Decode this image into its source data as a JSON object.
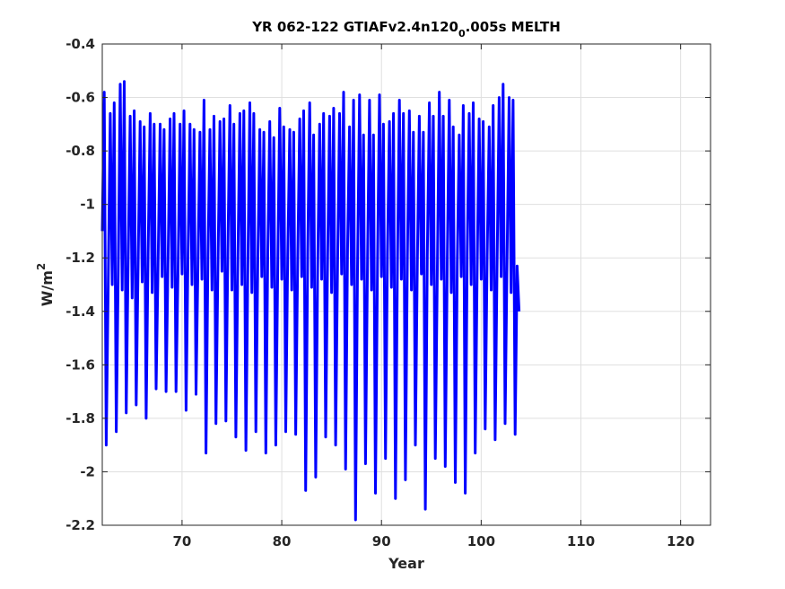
{
  "chart_data": {
    "type": "line",
    "title_parts": [
      "YR 062-122 GTIAFv2.4n120",
      "0",
      ".005s MELTH"
    ],
    "xlabel": "Year",
    "ylabel_parts": [
      "W/m",
      "2"
    ],
    "xlim": [
      62,
      123
    ],
    "ylim": [
      -2.2,
      -0.4
    ],
    "xticks": [
      70,
      80,
      90,
      100,
      110,
      120
    ],
    "yticks": [
      -2.2,
      -2,
      -1.8,
      -1.6,
      -1.4,
      -1.2,
      -1,
      -0.8,
      -0.6,
      -0.4
    ],
    "xtick_labels": [
      "70",
      "80",
      "90",
      "100",
      "110",
      "120"
    ],
    "ytick_labels": [
      "-2.2",
      "-2",
      "-1.8",
      "-1.6",
      "-1.4",
      "-1.2",
      "-1",
      "-0.8",
      "-0.6",
      "-0.4"
    ],
    "grid": true,
    "series": [
      {
        "color": "#0000ff",
        "samples_per_year": 5,
        "x_start": 62,
        "values": [
          -1.1,
          -0.58,
          -1.9,
          -1.28,
          -0.66,
          -1.3,
          -0.62,
          -1.85,
          -1.25,
          -0.55,
          -1.32,
          -0.54,
          -1.78,
          -1.2,
          -0.67,
          -1.35,
          -0.65,
          -1.75,
          -1.22,
          -0.69,
          -1.29,
          -0.71,
          -1.8,
          -1.18,
          -0.66,
          -1.33,
          -0.7,
          -1.69,
          -1.23,
          -0.7,
          -1.27,
          -0.72,
          -1.7,
          -1.2,
          -0.68,
          -1.31,
          -0.66,
          -1.7,
          -1.24,
          -0.7,
          -1.26,
          -0.65,
          -1.77,
          -1.19,
          -0.7,
          -1.3,
          -0.72,
          -1.71,
          -1.22,
          -0.73,
          -1.28,
          -0.61,
          -1.93,
          -1.2,
          -0.72,
          -1.32,
          -0.67,
          -1.82,
          -1.24,
          -0.69,
          -1.25,
          -0.68,
          -1.81,
          -1.17,
          -0.63,
          -1.32,
          -0.7,
          -1.87,
          -1.2,
          -0.66,
          -1.3,
          -0.65,
          -1.92,
          -1.23,
          -0.62,
          -1.33,
          -0.66,
          -1.85,
          -1.21,
          -0.72,
          -1.27,
          -0.73,
          -1.93,
          -1.18,
          -0.69,
          -1.31,
          -0.75,
          -1.9,
          -1.24,
          -0.64,
          -1.28,
          -0.71,
          -1.85,
          -1.2,
          -0.72,
          -1.32,
          -0.73,
          -1.86,
          -1.22,
          -0.68,
          -1.27,
          -0.65,
          -2.07,
          -1.18,
          -0.62,
          -1.31,
          -0.74,
          -2.02,
          -1.24,
          -0.7,
          -1.28,
          -0.66,
          -1.87,
          -1.2,
          -0.67,
          -1.33,
          -0.64,
          -1.9,
          -1.22,
          -0.66,
          -1.26,
          -0.58,
          -1.99,
          -1.17,
          -0.71,
          -1.3,
          -0.61,
          -2.18,
          -1.24,
          -0.59,
          -1.28,
          -0.74,
          -1.97,
          -1.2,
          -0.61,
          -1.32,
          -0.74,
          -2.08,
          -1.22,
          -0.59,
          -1.27,
          -0.7,
          -1.95,
          -1.18,
          -0.69,
          -1.31,
          -0.66,
          -2.1,
          -1.23,
          -0.61,
          -1.28,
          -0.66,
          -2.03,
          -1.2,
          -0.65,
          -1.32,
          -0.73,
          -1.9,
          -1.22,
          -0.67,
          -1.26,
          -0.73,
          -2.14,
          -1.19,
          -0.62,
          -1.3,
          -0.67,
          -1.95,
          -1.24,
          -0.58,
          -1.28,
          -0.67,
          -1.98,
          -1.2,
          -0.61,
          -1.33,
          -0.71,
          -2.04,
          -1.22,
          -0.74,
          -1.27,
          -0.63,
          -2.08,
          -1.18,
          -0.66,
          -1.3,
          -0.62,
          -1.93,
          -1.24,
          -0.68,
          -1.28,
          -0.69,
          -1.84,
          -1.2,
          -0.71,
          -1.32,
          -0.63,
          -1.88,
          -1.22,
          -0.6,
          -1.27,
          -0.55,
          -1.82,
          -1.18,
          -0.6,
          -1.33,
          -0.61,
          -1.86,
          -1.23,
          -1.4
        ]
      }
    ]
  }
}
